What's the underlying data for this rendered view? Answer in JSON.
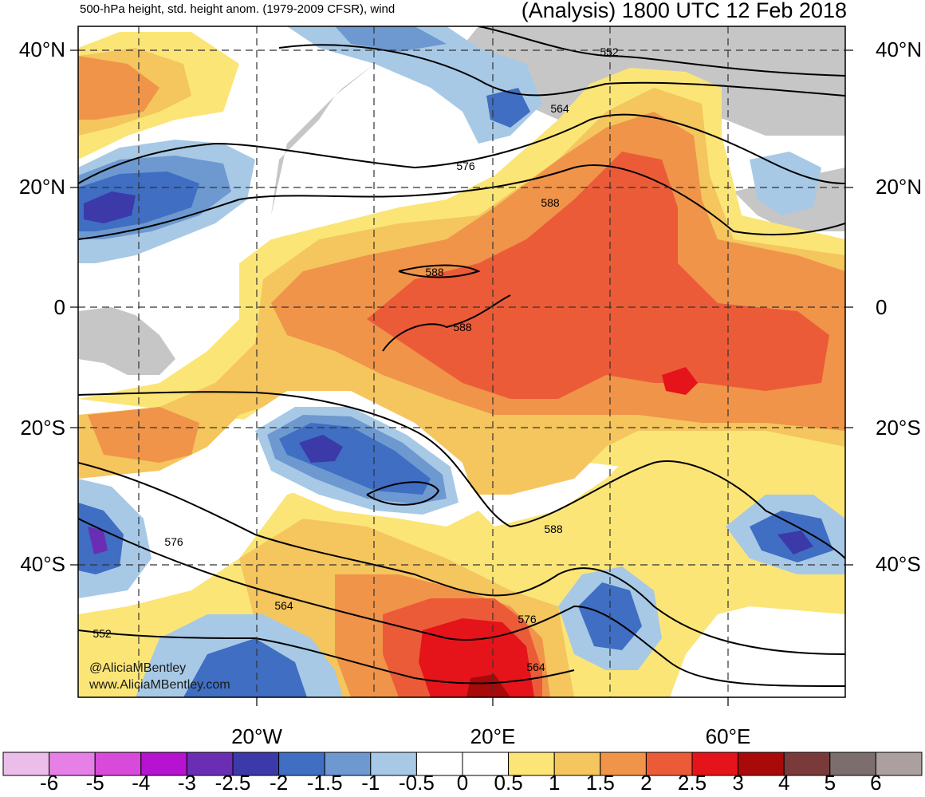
{
  "header": {
    "left": "500-hPa height, std. height anom. (1979-2009 CFSR), wind",
    "right": "(Analysis) 1800 UTC 12 Feb 2018"
  },
  "lat_labels": [
    "40°N",
    "20°N",
    "0",
    "20°S",
    "40°S"
  ],
  "lon_labels": [
    "20°W",
    "20°E",
    "60°E"
  ],
  "contour_labels": [
    "552",
    "564",
    "576",
    "588",
    "588",
    "588",
    "588",
    "576",
    "564",
    "552",
    "576",
    "564"
  ],
  "colorbar": {
    "labels": [
      "-6",
      "-5",
      "-4",
      "-3",
      "-2.5",
      "-2",
      "-1.5",
      "-1",
      "-0.5",
      "0",
      "0.5",
      "1",
      "1.5",
      "2",
      "2.5",
      "3",
      "4",
      "5",
      "6"
    ],
    "colors": [
      "#ebbde9",
      "#e680e6",
      "#d84ad9",
      "#b513cf",
      "#6a2eb5",
      "#3b3aa8",
      "#3f6ec2",
      "#6d99d0",
      "#a7c9e6",
      "#ffffff",
      "#ffffff",
      "#fbe577",
      "#f5c55e",
      "#f0944a",
      "#ec5b38",
      "#e4141a",
      "#a80a0a",
      "#7a3a3a",
      "#7d6e6e",
      "#ab9f9f"
    ]
  },
  "credits": {
    "handle": "@AliciaMBentley",
    "url": "www.AliciaMBentley.com"
  },
  "colors": {
    "land_gray": "#c6c6c6",
    "contour": "#000000",
    "grid": "#333333"
  }
}
